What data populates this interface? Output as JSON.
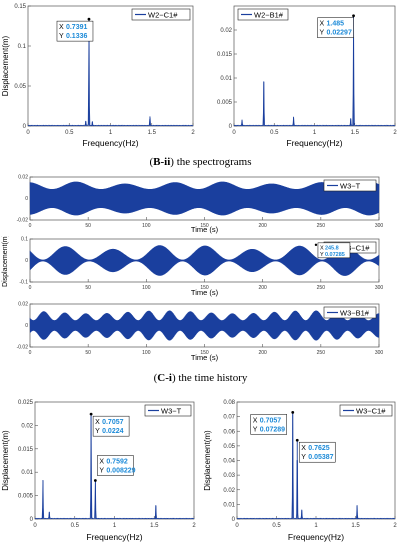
{
  "captions": {
    "b_ii_label": "B-ii",
    "b_ii_rest": " the spectrograms",
    "c_i_label": "C-i",
    "c_i_rest": " the time history"
  },
  "colors": {
    "series": "#1a3f9e",
    "axis": "#555555",
    "datatip_text": "#1c8ad8",
    "datatip_border": "#000000"
  },
  "chart_data": [
    {
      "type": "line",
      "panel": "B-ii left",
      "legend": [
        "W2−C1#"
      ],
      "legend_position": "top-right",
      "xlabel": "Frequency(Hz)",
      "ylabel": "Displacement(m)",
      "xlim": [
        0,
        2
      ],
      "ylim": [
        0,
        0.15
      ],
      "xticks": [
        "0",
        "0.5",
        "1",
        "1.5",
        "2"
      ],
      "yticks": [
        "0",
        "0.05",
        "0.1",
        "0.15"
      ],
      "peaks": [
        {
          "x": 0.7391,
          "y": 0.1336
        },
        {
          "x": 0.7,
          "y": 0.006
        },
        {
          "x": 0.78,
          "y": 0.005
        },
        {
          "x": 1.478,
          "y": 0.012
        }
      ],
      "datatip": {
        "x_label": "X",
        "x_value": "0.7391",
        "y_label": "Y",
        "y_value": "0.1336"
      }
    },
    {
      "type": "line",
      "panel": "B-ii right",
      "legend": [
        "W2−B1#"
      ],
      "legend_position": "top-left",
      "xlabel": "Frequency(Hz)",
      "ylabel": "",
      "xlim": [
        0,
        2
      ],
      "ylim": [
        0,
        0.025
      ],
      "xticks": [
        "0",
        "0.5",
        "1",
        "1.5",
        "2"
      ],
      "yticks": [
        "0",
        "0.005",
        "0.01",
        "0.015",
        "0.02"
      ],
      "peaks": [
        {
          "x": 0.1,
          "y": 0.0012
        },
        {
          "x": 0.37,
          "y": 0.0092
        },
        {
          "x": 0.74,
          "y": 0.0018
        },
        {
          "x": 1.485,
          "y": 0.02297
        },
        {
          "x": 1.45,
          "y": 0.0015
        }
      ],
      "datatip": {
        "x_label": "X",
        "x_value": "1.485",
        "y_label": "Y",
        "y_value": "0.02297"
      }
    },
    {
      "type": "line",
      "panel": "C-i top",
      "legend": [
        "W3−T"
      ],
      "legend_position": "top-right",
      "xlabel": "Time (s)",
      "xlim": [
        0,
        300
      ],
      "ylim": [
        -0.02,
        0.02
      ],
      "xticks": [
        "0",
        "50",
        "100",
        "150",
        "200",
        "250",
        "300"
      ],
      "yticks": [
        "0.02",
        "0",
        "-0.02"
      ],
      "signal": {
        "amplitude": 0.016,
        "envelope_period": 42,
        "min_ratio": 0.55
      }
    },
    {
      "type": "line",
      "panel": "C-i middle",
      "legend": [
        "W3−C1#"
      ],
      "legend_position": "top-right",
      "xlabel": "Time (s)",
      "ylabel": "Displacement(m)",
      "xlim": [
        0,
        300
      ],
      "ylim": [
        -0.1,
        0.1
      ],
      "xticks": [
        "0",
        "50",
        "100",
        "150",
        "200",
        "250",
        "300"
      ],
      "yticks": [
        "0.1",
        "0",
        "-0.1"
      ],
      "signal": {
        "amplitude": 0.075,
        "envelope_period": 40,
        "min_ratio": 0.05
      },
      "datatip": {
        "x_label": "X",
        "x_value": "245.8",
        "y_label": "Y",
        "y_value": "0.07285"
      }
    },
    {
      "type": "line",
      "panel": "C-i bottom",
      "legend": [
        "W3−B1#"
      ],
      "legend_position": "top-right",
      "xlabel": "Time (s)",
      "xlim": [
        0,
        300
      ],
      "ylim": [
        -0.02,
        0.02
      ],
      "xticks": [
        "0",
        "50",
        "100",
        "150",
        "200",
        "250",
        "300"
      ],
      "yticks": [
        "0.02",
        "0",
        "-0.02"
      ],
      "signal": {
        "amplitude": 0.014,
        "envelope_period": 18,
        "min_ratio": 0.35
      }
    },
    {
      "type": "line",
      "panel": "C-ii left",
      "legend": [
        "W3−T"
      ],
      "legend_position": "top-right",
      "xlabel": "Frequency(Hz)",
      "ylabel": "Displacement(m)",
      "xlim": [
        0,
        2
      ],
      "ylim": [
        0,
        0.025
      ],
      "xticks": [
        "0",
        "0.5",
        "1",
        "1.5",
        "2"
      ],
      "yticks": [
        "0",
        "0.005",
        "0.01",
        "0.015",
        "0.02",
        "0.025"
      ],
      "peaks": [
        {
          "x": 0.1,
          "y": 0.0082
        },
        {
          "x": 0.18,
          "y": 0.0015
        },
        {
          "x": 0.7057,
          "y": 0.0224
        },
        {
          "x": 0.7592,
          "y": 0.008229
        },
        {
          "x": 1.52,
          "y": 0.0028
        }
      ],
      "datatips": [
        {
          "x_label": "X",
          "x_value": "0.7057",
          "y_label": "Y",
          "y_value": "0.0224"
        },
        {
          "x_label": "X",
          "x_value": "0.7592",
          "y_label": "Y",
          "y_value": "0.008229"
        }
      ]
    },
    {
      "type": "line",
      "panel": "C-ii right",
      "legend": [
        "W3−C1#"
      ],
      "legend_position": "top-right",
      "xlabel": "Frequency(Hz)",
      "ylabel": "Displacement(m)",
      "xlim": [
        0,
        2
      ],
      "ylim": [
        0,
        0.08
      ],
      "xticks": [
        "0",
        "0.5",
        "1",
        "1.5",
        "2"
      ],
      "yticks": [
        "0",
        "0.01",
        "0.02",
        "0.03",
        "0.04",
        "0.05",
        "0.06",
        "0.07",
        "0.08"
      ],
      "peaks": [
        {
          "x": 0.7057,
          "y": 0.07289
        },
        {
          "x": 0.7625,
          "y": 0.05387
        },
        {
          "x": 0.82,
          "y": 0.006
        },
        {
          "x": 1.52,
          "y": 0.009
        }
      ],
      "datatips": [
        {
          "x_label": "X",
          "x_value": "0.7057",
          "y_label": "Y",
          "y_value": "0.07289"
        },
        {
          "x_label": "X",
          "x_value": "0.7625",
          "y_label": "Y",
          "y_value": "0.05387"
        }
      ]
    }
  ]
}
